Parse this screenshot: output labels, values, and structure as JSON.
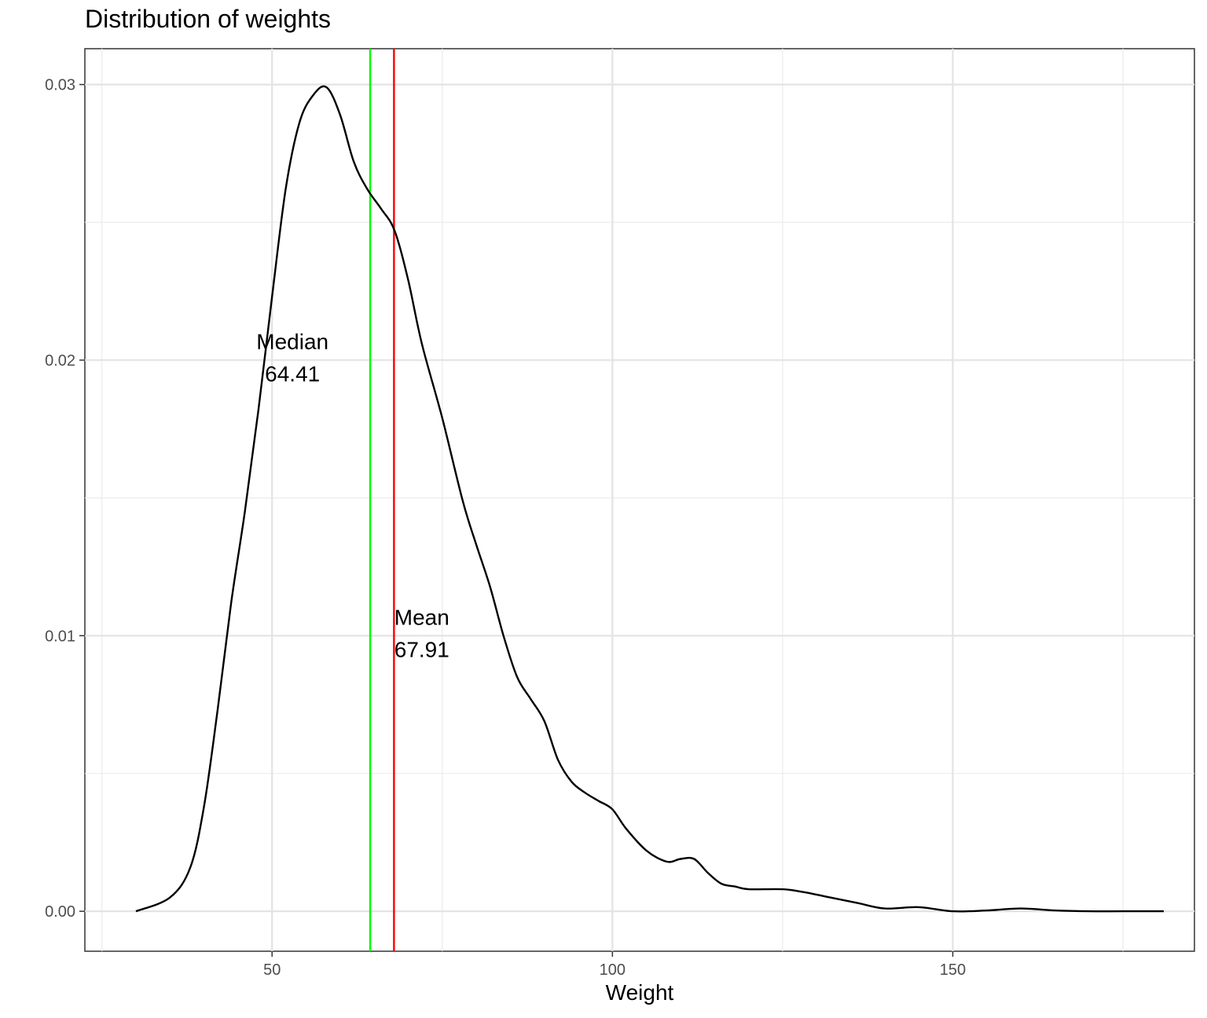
{
  "chart_data": {
    "type": "line",
    "title": "Distribution of weights",
    "xlabel": "Weight",
    "ylabel": "",
    "xlim": [
      22.5,
      185.5
    ],
    "ylim": [
      -0.00145,
      0.0313
    ],
    "xticks": [
      50,
      100,
      150
    ],
    "xtick_labels": [
      "50",
      "100",
      "150"
    ],
    "yticks": [
      0.0,
      0.01,
      0.02,
      0.03
    ],
    "ytick_labels": [
      "0.00",
      "0.01",
      "0.02",
      "0.03"
    ],
    "grid": true,
    "series": [
      {
        "color": "#000000",
        "x": [
          30,
          35,
          38,
          40,
          42,
          44,
          46,
          48,
          50,
          52,
          54,
          56,
          58,
          60,
          62,
          64,
          66,
          68,
          70,
          72,
          75,
          78,
          80,
          82,
          84,
          86,
          88,
          90,
          92,
          94,
          96,
          98,
          100,
          102,
          105,
          108,
          110,
          112,
          114,
          116,
          118,
          120,
          125,
          128,
          132,
          136,
          140,
          145,
          150,
          155,
          160,
          165,
          170,
          175,
          181
        ],
        "y": [
          0.0,
          0.0005,
          0.0016,
          0.0038,
          0.0073,
          0.0112,
          0.0145,
          0.0182,
          0.0223,
          0.0262,
          0.0286,
          0.0296,
          0.0299,
          0.0289,
          0.0272,
          0.0262,
          0.0255,
          0.0247,
          0.0229,
          0.0206,
          0.0179,
          0.0149,
          0.0133,
          0.0118,
          0.01,
          0.0085,
          0.0077,
          0.0069,
          0.0055,
          0.0047,
          0.0043,
          0.004,
          0.0037,
          0.003,
          0.0022,
          0.0018,
          0.0019,
          0.0019,
          0.0014,
          0.001,
          0.0009,
          0.0008,
          0.0008,
          0.0007,
          0.0005,
          0.0003,
          0.0001,
          0.00015,
          0.0,
          3e-05,
          0.0001,
          3e-05,
          0.0,
          0.0,
          0.0
        ]
      }
    ],
    "vlines": [
      {
        "name": "median-line",
        "x": 64.41,
        "color": "#00ff00"
      },
      {
        "name": "mean-line",
        "x": 67.91,
        "color": "#ff0000"
      }
    ],
    "annotations": [
      {
        "name": "median-annotation",
        "lines": [
          "Median",
          "64.41"
        ],
        "x": 53,
        "y": 0.0201
      },
      {
        "name": "mean-annotation",
        "lines": [
          "Mean",
          "67.91"
        ],
        "x": 72,
        "y": 0.0101
      }
    ]
  }
}
